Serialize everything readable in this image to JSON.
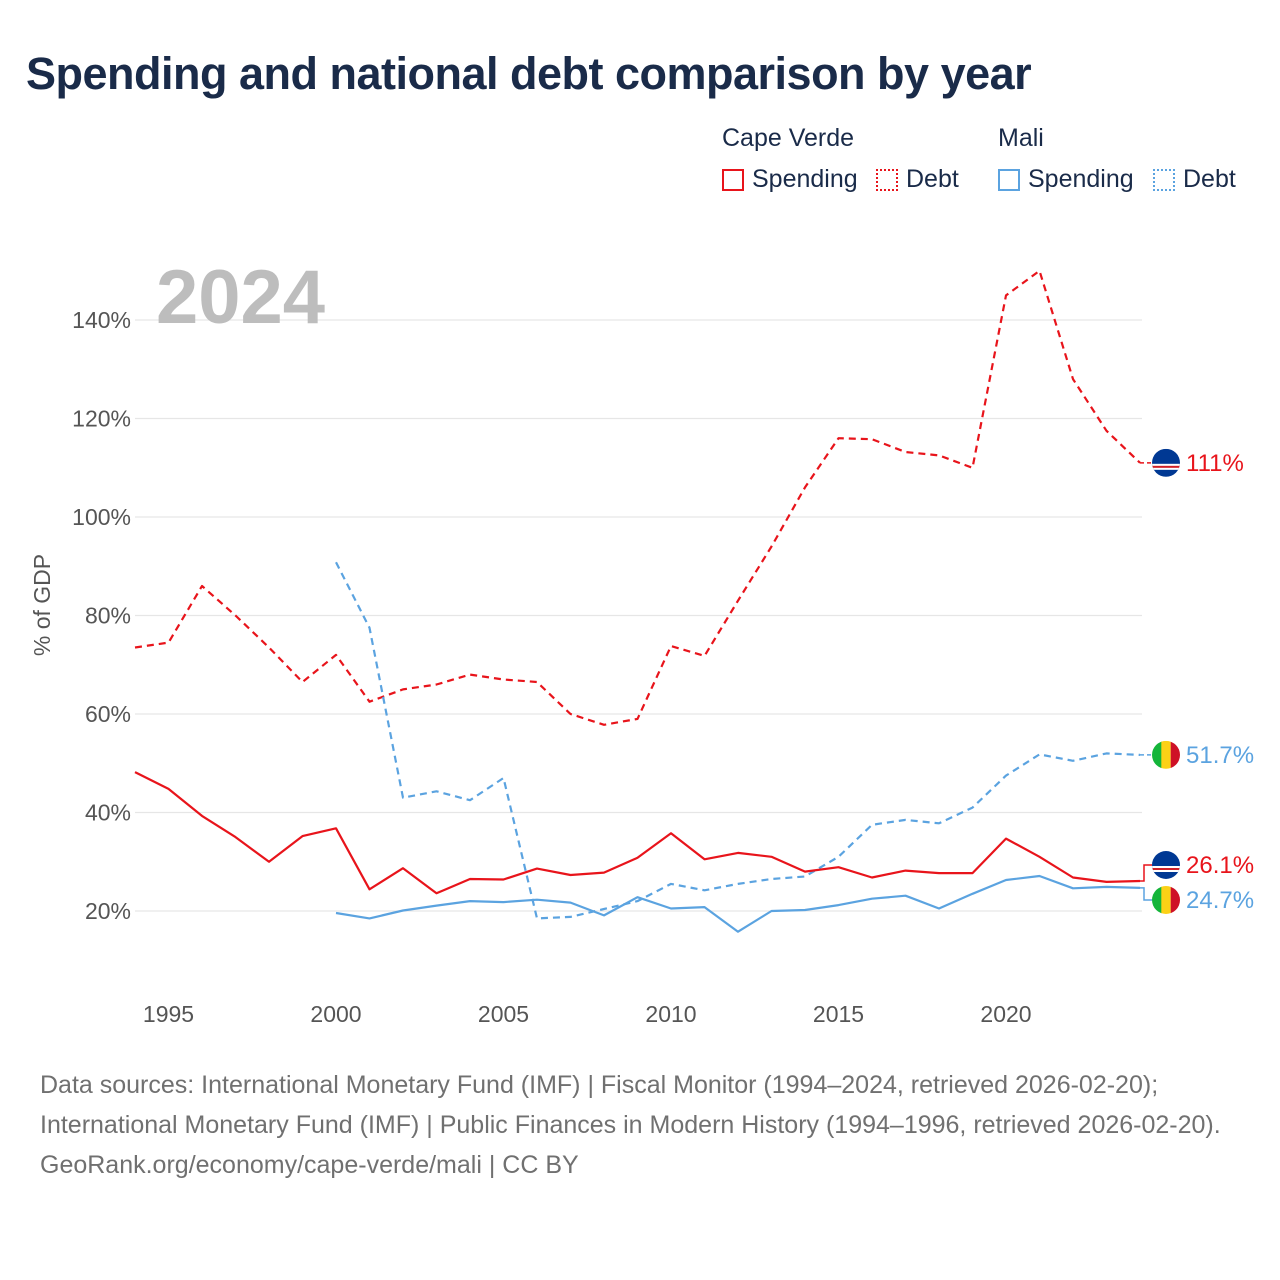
{
  "title": "Spending and national debt comparison by year",
  "legend": {
    "groups": [
      {
        "name": "Cape Verde",
        "color": "#e8141b",
        "items": [
          {
            "label": "Spending",
            "style": "solid"
          },
          {
            "label": "Debt",
            "style": "dotted"
          }
        ]
      },
      {
        "name": "Mali",
        "color": "#5ba3e0",
        "items": [
          {
            "label": "Spending",
            "style": "solid"
          },
          {
            "label": "Debt",
            "style": "dotted"
          }
        ]
      }
    ]
  },
  "chart_data": {
    "type": "line",
    "title": "Spending and national debt comparison by year",
    "year_label": "2024",
    "xlabel": "",
    "ylabel": "% of GDP",
    "xlim": [
      1994,
      2024
    ],
    "ylim": [
      5,
      155
    ],
    "x_ticks": [
      1995,
      2000,
      2005,
      2010,
      2015,
      2020
    ],
    "y_ticks": [
      20,
      40,
      60,
      80,
      100,
      120,
      140
    ],
    "y_tick_labels": [
      "20%",
      "40%",
      "60%",
      "80%",
      "100%",
      "120%",
      "140%"
    ],
    "grid": true,
    "series": [
      {
        "name": "Cape Verde Debt",
        "country": "Cape Verde",
        "measure": "Debt",
        "color": "#e8141b",
        "dash": "dashed",
        "end_label": "111%",
        "points": [
          [
            1994,
            73.5
          ],
          [
            1995,
            74.5
          ],
          [
            1996,
            86
          ],
          [
            1997,
            80
          ],
          [
            1998,
            73.5
          ],
          [
            1999,
            66.5
          ],
          [
            2000,
            72
          ],
          [
            2001,
            62.5
          ],
          [
            2002,
            65
          ],
          [
            2003,
            66
          ],
          [
            2004,
            68
          ],
          [
            2005,
            67
          ],
          [
            2006,
            66.5
          ],
          [
            2007,
            60
          ],
          [
            2008,
            57.8
          ],
          [
            2009,
            59
          ],
          [
            2010,
            73.8
          ],
          [
            2011,
            71.8
          ],
          [
            2012,
            83
          ],
          [
            2013,
            94
          ],
          [
            2014,
            106
          ],
          [
            2015,
            116
          ],
          [
            2016,
            115.8
          ],
          [
            2017,
            113.2
          ],
          [
            2018,
            112.5
          ],
          [
            2019,
            110
          ],
          [
            2020,
            145
          ],
          [
            2021,
            150
          ],
          [
            2022,
            128
          ],
          [
            2023,
            117.5
          ],
          [
            2024,
            111
          ]
        ]
      },
      {
        "name": "Mali Debt",
        "country": "Mali",
        "measure": "Debt",
        "color": "#5ba3e0",
        "dash": "dashed",
        "end_label": "51.7%",
        "points": [
          [
            2000,
            90.8
          ],
          [
            2001,
            77.5
          ],
          [
            2002,
            43
          ],
          [
            2003,
            44.3
          ],
          [
            2004,
            42.5
          ],
          [
            2005,
            47
          ],
          [
            2006,
            18.5
          ],
          [
            2007,
            18.8
          ],
          [
            2008,
            20.4
          ],
          [
            2009,
            22
          ],
          [
            2010,
            25.5
          ],
          [
            2011,
            24.2
          ],
          [
            2012,
            25.5
          ],
          [
            2013,
            26.5
          ],
          [
            2014,
            27
          ],
          [
            2015,
            31
          ],
          [
            2016,
            37.5
          ],
          [
            2017,
            38.5
          ],
          [
            2018,
            37.8
          ],
          [
            2019,
            41
          ],
          [
            2020,
            47.5
          ],
          [
            2021,
            51.8
          ],
          [
            2022,
            50.5
          ],
          [
            2023,
            52
          ],
          [
            2024,
            51.7
          ]
        ]
      },
      {
        "name": "Cape Verde Spending",
        "country": "Cape Verde",
        "measure": "Spending",
        "color": "#e8141b",
        "dash": "solid",
        "end_label": "26.1%",
        "points": [
          [
            1994,
            48.2
          ],
          [
            1995,
            44.8
          ],
          [
            1996,
            39.3
          ],
          [
            1997,
            35
          ],
          [
            1998,
            30
          ],
          [
            1999,
            35.2
          ],
          [
            2000,
            36.8
          ],
          [
            2001,
            24.4
          ],
          [
            2002,
            28.7
          ],
          [
            2003,
            23.6
          ],
          [
            2004,
            26.5
          ],
          [
            2005,
            26.4
          ],
          [
            2006,
            28.6
          ],
          [
            2007,
            27.3
          ],
          [
            2008,
            27.8
          ],
          [
            2009,
            30.8
          ],
          [
            2010,
            35.8
          ],
          [
            2011,
            30.5
          ],
          [
            2012,
            31.8
          ],
          [
            2013,
            31
          ],
          [
            2014,
            28
          ],
          [
            2015,
            28.9
          ],
          [
            2016,
            26.8
          ],
          [
            2017,
            28.2
          ],
          [
            2018,
            27.7
          ],
          [
            2019,
            27.7
          ],
          [
            2020,
            34.7
          ],
          [
            2021,
            31
          ],
          [
            2022,
            26.8
          ],
          [
            2023,
            25.9
          ],
          [
            2024,
            26.1
          ]
        ]
      },
      {
        "name": "Mali Spending",
        "country": "Mali",
        "measure": "Spending",
        "color": "#5ba3e0",
        "dash": "solid",
        "end_label": "24.7%",
        "points": [
          [
            2000,
            19.6
          ],
          [
            2001,
            18.5
          ],
          [
            2002,
            20.1
          ],
          [
            2003,
            21.1
          ],
          [
            2004,
            22
          ],
          [
            2005,
            21.8
          ],
          [
            2006,
            22.3
          ],
          [
            2007,
            21.7
          ],
          [
            2008,
            19.1
          ],
          [
            2009,
            22.8
          ],
          [
            2010,
            20.5
          ],
          [
            2011,
            20.8
          ],
          [
            2012,
            15.8
          ],
          [
            2013,
            20
          ],
          [
            2014,
            20.2
          ],
          [
            2015,
            21.2
          ],
          [
            2016,
            22.5
          ],
          [
            2017,
            23.1
          ],
          [
            2018,
            20.5
          ],
          [
            2019,
            23.5
          ],
          [
            2020,
            26.3
          ],
          [
            2021,
            27.1
          ],
          [
            2022,
            24.6
          ],
          [
            2023,
            24.9
          ],
          [
            2024,
            24.7
          ]
        ]
      }
    ]
  },
  "sources": {
    "line1": "Data sources: International Monetary Fund (IMF) | Fiscal Monitor (1994–2024, retrieved 2026-02-20); International Monetary Fund (IMF) | Public Finances in Modern History (1994–1996, retrieved 2026-02-20).",
    "line2": "GeoRank.org/economy/cape-verde/mali | CC BY"
  }
}
